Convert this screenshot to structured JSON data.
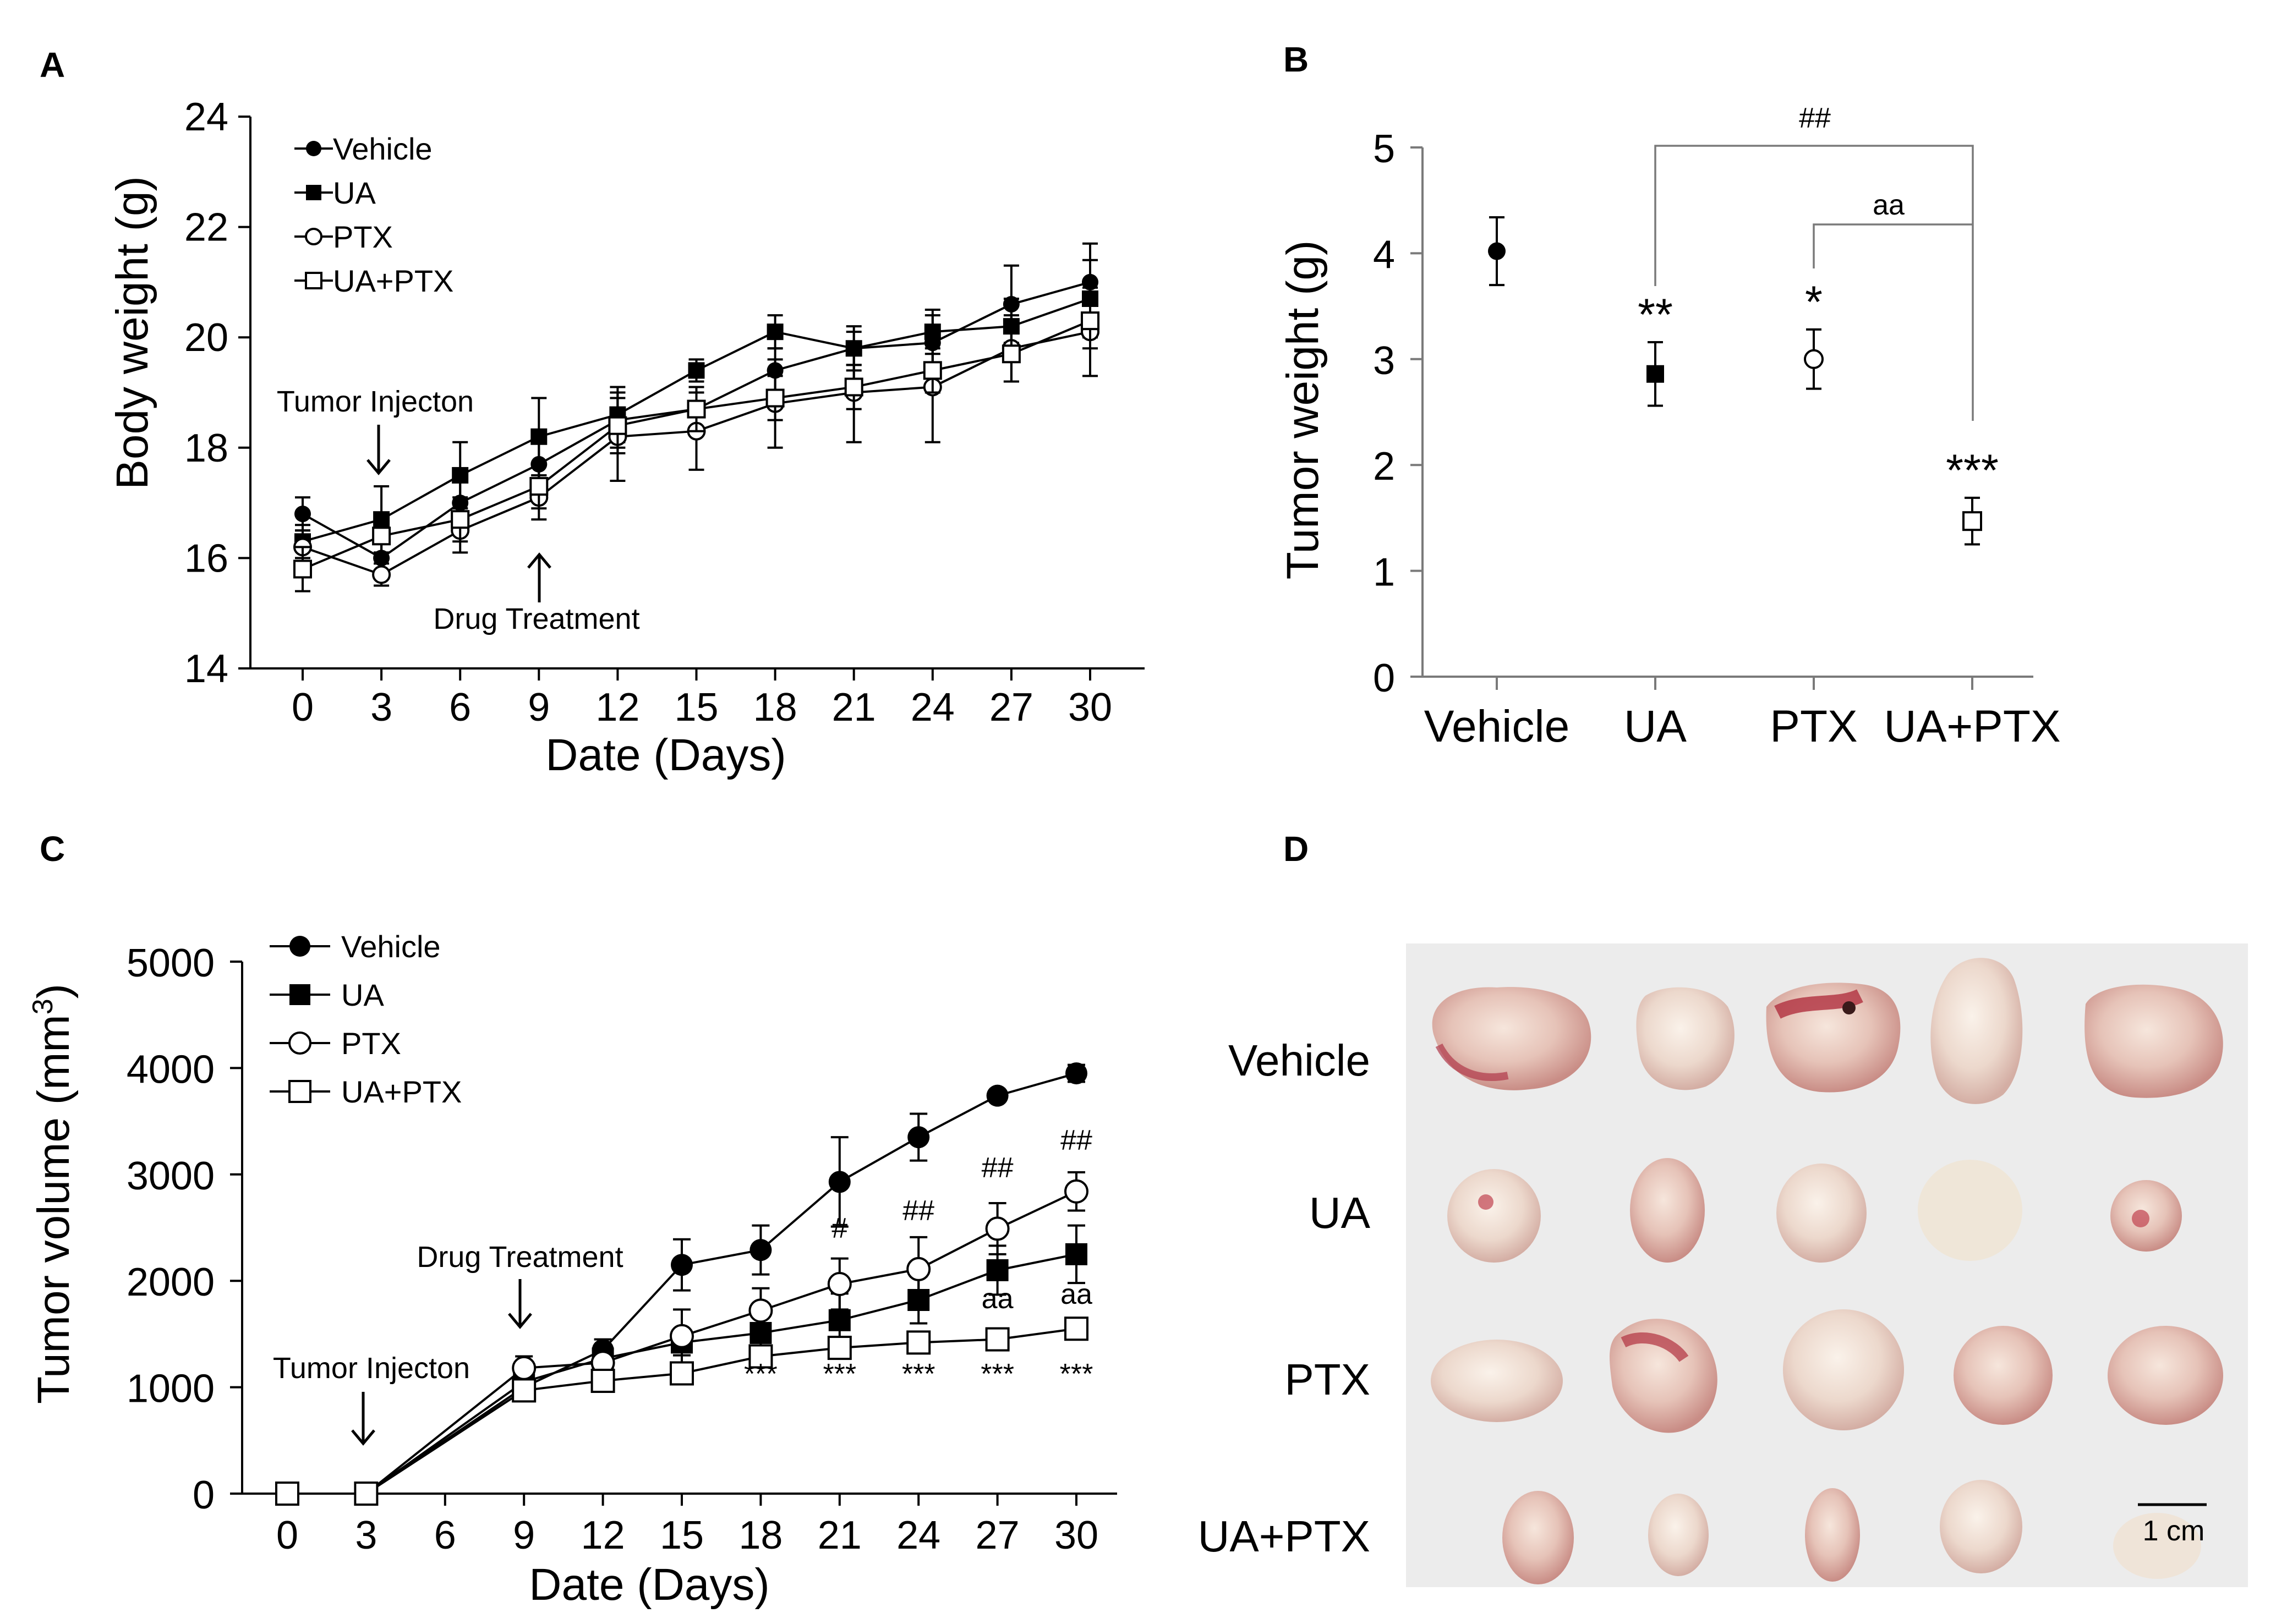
{
  "panels": {
    "a": "A",
    "b": "B",
    "c": "C",
    "d": "D"
  },
  "chart_data": [
    {
      "id": "A",
      "type": "line",
      "xlabel": "Date (Days)",
      "ylabel": "Body weight (g)",
      "x": [
        0,
        3,
        6,
        9,
        12,
        15,
        18,
        21,
        24,
        27,
        30
      ],
      "xticks": [
        "0",
        "3",
        "6",
        "9",
        "12",
        "15",
        "18",
        "21",
        "24",
        "27",
        "30"
      ],
      "yticks": [
        "14",
        "16",
        "18",
        "20",
        "22",
        "24"
      ],
      "ylim": [
        14,
        24
      ],
      "series": [
        {
          "name": "Vehicle",
          "marker": "circle-filled",
          "values": [
            16.8,
            16.0,
            17.0,
            17.7,
            18.5,
            18.7,
            19.4,
            19.8,
            19.9,
            20.6,
            21.0
          ],
          "err": [
            0.3,
            0.3,
            0.4,
            0.4,
            0.5,
            0.4,
            0.4,
            0.4,
            0.5,
            0.7,
            0.7
          ]
        },
        {
          "name": "UA",
          "marker": "square-filled",
          "values": [
            16.3,
            16.7,
            17.5,
            18.2,
            18.6,
            19.4,
            20.1,
            19.8,
            20.1,
            20.2,
            20.7
          ],
          "err": [
            0.3,
            0.6,
            0.6,
            0.7,
            0.5,
            0.2,
            0.3,
            0.3,
            0.4,
            0.5,
            0.7
          ]
        },
        {
          "name": "PTX",
          "marker": "circle-open",
          "values": [
            16.2,
            15.7,
            16.5,
            17.1,
            18.2,
            18.3,
            18.8,
            19.0,
            19.1,
            19.8,
            20.1
          ],
          "err": [
            0.3,
            0.2,
            0.4,
            0.4,
            0.8,
            0.7,
            0.8,
            0.9,
            1.0,
            0.6,
            0.8
          ]
        },
        {
          "name": "UA+PTX",
          "marker": "square-open",
          "values": [
            15.8,
            16.4,
            16.7,
            17.3,
            18.4,
            18.7,
            18.9,
            19.1,
            19.4,
            19.7,
            20.3
          ],
          "err": [
            0.4,
            0.3,
            0.4,
            0.4,
            0.5,
            0.4,
            0.4,
            0.4,
            0.4,
            0.5,
            0.5
          ]
        }
      ],
      "annotations": {
        "tumor": "Tumor Injecton",
        "drug": "Drug Treatment"
      }
    },
    {
      "id": "B",
      "type": "scatter",
      "ylabel": "Tumor weight (g)",
      "categories": [
        "Vehicle",
        "UA",
        "PTX",
        "UA+PTX"
      ],
      "yticks": [
        "0",
        "1",
        "2",
        "3",
        "4",
        "5"
      ],
      "ylim": [
        0,
        5
      ],
      "values": [
        4.02,
        2.86,
        3.0,
        1.47
      ],
      "err": [
        0.32,
        0.3,
        0.28,
        0.22
      ],
      "significance": [
        "",
        "**",
        "*",
        "***"
      ],
      "brackets": [
        "##",
        "aa"
      ]
    },
    {
      "id": "C",
      "type": "line",
      "xlabel": "Date (Days)",
      "ylabel": "Tumor volume (mm",
      "ylabel_sup": "3",
      "ylabel_end": ")",
      "x": [
        0,
        3,
        9,
        12,
        15,
        18,
        21,
        24,
        27,
        30
      ],
      "xticks": [
        "0",
        "3",
        "6",
        "9",
        "12",
        "15",
        "18",
        "21",
        "24",
        "27",
        "30"
      ],
      "yticks": [
        "0",
        "1000",
        "2000",
        "3000",
        "4000",
        "5000"
      ],
      "ylim": [
        0,
        5000
      ],
      "series": [
        {
          "name": "Vehicle",
          "marker": "circle-filled",
          "values": [
            0,
            0,
            1000,
            1350,
            2150,
            2290,
            2930,
            3350,
            3740,
            3950
          ],
          "err": [
            0,
            0,
            80,
            100,
            240,
            230,
            420,
            220,
            40,
            80
          ]
        },
        {
          "name": "UA",
          "marker": "square-filled",
          "values": [
            0,
            0,
            1050,
            1270,
            1420,
            1510,
            1630,
            1820,
            2100,
            2250
          ],
          "err": [
            0,
            0,
            120,
            100,
            120,
            170,
            250,
            220,
            230,
            270
          ]
        },
        {
          "name": "PTX",
          "marker": "circle-open",
          "values": [
            0,
            0,
            1180,
            1230,
            1480,
            1720,
            1970,
            2110,
            2490,
            2840
          ],
          "err": [
            0,
            0,
            110,
            120,
            250,
            210,
            240,
            300,
            240,
            180
          ]
        },
        {
          "name": "UA+PTX",
          "marker": "square-open",
          "values": [
            0,
            0,
            970,
            1060,
            1130,
            1290,
            1370,
            1420,
            1450,
            1550
          ],
          "err": [
            0,
            0,
            70,
            90,
            60,
            80,
            80,
            90,
            60,
            70
          ]
        }
      ],
      "annotations": {
        "tumor": "Tumor Injecton",
        "drug": "Drug Treatment"
      },
      "sig_stars": [
        {
          "x": 18,
          "label": "***"
        },
        {
          "x": 21,
          "label": "***"
        },
        {
          "x": 24,
          "label": "***"
        },
        {
          "x": 27,
          "label": "***"
        },
        {
          "x": 30,
          "label": "***"
        }
      ],
      "sig_hash": [
        {
          "x": 21,
          "label": "#"
        },
        {
          "x": 24,
          "label": "##"
        },
        {
          "x": 27,
          "label": "##"
        },
        {
          "x": 30,
          "label": "##"
        }
      ],
      "sig_aa": [
        {
          "x": 27,
          "label": "aa"
        },
        {
          "x": 30,
          "label": "aa"
        }
      ]
    }
  ],
  "photo": {
    "rows": [
      "Vehicle",
      "UA",
      "PTX",
      "UA+PTX"
    ],
    "scale_bar": "1 cm",
    "background": "#ececec"
  }
}
